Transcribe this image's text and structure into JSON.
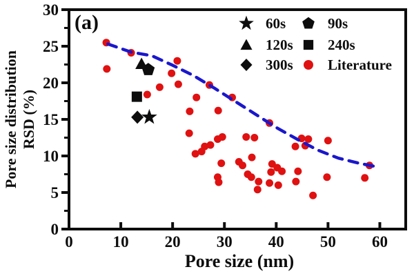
{
  "figure_label": "(a)",
  "axes": {
    "x_label": "Pore size (nm)",
    "y_label_line1": "Pore size distribution",
    "y_label_line2": "RSD (%)",
    "x_ticks": [
      0,
      10,
      20,
      30,
      40,
      50,
      60
    ],
    "y_ticks": [
      0,
      5,
      10,
      15,
      20,
      25,
      30
    ],
    "y_minor_ticks": [
      2.5,
      7.5,
      12.5,
      17.5,
      22.5,
      27.5
    ],
    "x_range": [
      0,
      65
    ],
    "y_range": [
      0,
      30
    ]
  },
  "colors": {
    "literature_red": "#e01111",
    "trend_blue": "#1a17cc",
    "marker_black": "#0d0d0d",
    "axis_black": "#0d0d0d",
    "background": "#ffffff"
  },
  "legend": [
    {
      "label": "60s",
      "marker": "star"
    },
    {
      "label": "90s",
      "marker": "pentagon"
    },
    {
      "label": "120s",
      "marker": "triangle"
    },
    {
      "label": "240s",
      "marker": "square"
    },
    {
      "label": "300s",
      "marker": "diamond"
    },
    {
      "label": "Literature",
      "marker": "circle"
    }
  ],
  "chart_data": {
    "type": "scatter",
    "title": "(a)",
    "xlabel": "Pore size (nm)",
    "ylabel": "Pore size distribution RSD (%)",
    "xlim": [
      0,
      65
    ],
    "ylim": [
      0,
      30
    ],
    "grid": false,
    "legend_position": "top-right-inside",
    "series": [
      {
        "name": "60s",
        "marker": "star",
        "color": "#0d0d0d",
        "points": [
          [
            15.5,
            15.3
          ]
        ]
      },
      {
        "name": "90s",
        "marker": "pentagon",
        "color": "#0d0d0d",
        "points": [
          [
            15.3,
            21.8
          ]
        ]
      },
      {
        "name": "120s",
        "marker": "triangle",
        "color": "#0d0d0d",
        "points": [
          [
            14.0,
            22.6
          ]
        ]
      },
      {
        "name": "240s",
        "marker": "square",
        "color": "#0d0d0d",
        "points": [
          [
            13.1,
            18.1
          ]
        ]
      },
      {
        "name": "300s",
        "marker": "diamond",
        "color": "#0d0d0d",
        "points": [
          [
            13.2,
            15.3
          ]
        ]
      },
      {
        "name": "Literature",
        "marker": "circle",
        "color": "#e01111",
        "points": [
          [
            7.2,
            25.5
          ],
          [
            12.0,
            24.1
          ],
          [
            7.3,
            21.9
          ],
          [
            20.9,
            23.0
          ],
          [
            19.8,
            21.3
          ],
          [
            21.1,
            19.8
          ],
          [
            17.5,
            19.4
          ],
          [
            15.1,
            18.4
          ],
          [
            27.1,
            19.7
          ],
          [
            24.6,
            18.0
          ],
          [
            31.5,
            18.0
          ],
          [
            23.3,
            16.1
          ],
          [
            28.8,
            16.2
          ],
          [
            38.7,
            14.5
          ],
          [
            23.2,
            13.1
          ],
          [
            34.2,
            12.6
          ],
          [
            35.8,
            12.5
          ],
          [
            29.6,
            12.6
          ],
          [
            28.7,
            12.3
          ],
          [
            27.3,
            11.5
          ],
          [
            26.2,
            11.3
          ],
          [
            25.6,
            10.6
          ],
          [
            24.4,
            10.3
          ],
          [
            29.4,
            9.0
          ],
          [
            35.3,
            9.8
          ],
          [
            32.8,
            9.2
          ],
          [
            33.5,
            8.7
          ],
          [
            28.7,
            7.1
          ],
          [
            28.9,
            6.4
          ],
          [
            34.5,
            7.5
          ],
          [
            35.2,
            7.1
          ],
          [
            36.6,
            6.5
          ],
          [
            36.4,
            5.4
          ],
          [
            38.7,
            6.3
          ],
          [
            40.4,
            6.0
          ],
          [
            39.2,
            8.9
          ],
          [
            40.2,
            8.4
          ],
          [
            39.0,
            7.8
          ],
          [
            41.1,
            7.9
          ],
          [
            43.8,
            6.5
          ],
          [
            44.2,
            7.9
          ],
          [
            47.1,
            4.6
          ],
          [
            49.8,
            7.1
          ],
          [
            50.0,
            12.1
          ],
          [
            43.7,
            11.3
          ],
          [
            44.9,
            12.4
          ],
          [
            45.6,
            11.4
          ],
          [
            46.2,
            12.3
          ],
          [
            57.1,
            7.0
          ],
          [
            58.0,
            8.7
          ]
        ]
      }
    ],
    "trend": {
      "style": "dashed",
      "color": "#1a17cc",
      "points": [
        [
          7.5,
          25.3
        ],
        [
          12,
          24.2
        ],
        [
          16,
          23.7
        ],
        [
          20,
          22.4
        ],
        [
          24,
          21.0
        ],
        [
          28,
          19.3
        ],
        [
          32,
          17.5
        ],
        [
          36,
          15.7
        ],
        [
          40,
          13.9
        ],
        [
          44,
          12.3
        ],
        [
          48,
          10.8
        ],
        [
          52,
          9.7
        ],
        [
          56,
          9.0
        ],
        [
          58.8,
          8.6
        ]
      ]
    }
  }
}
